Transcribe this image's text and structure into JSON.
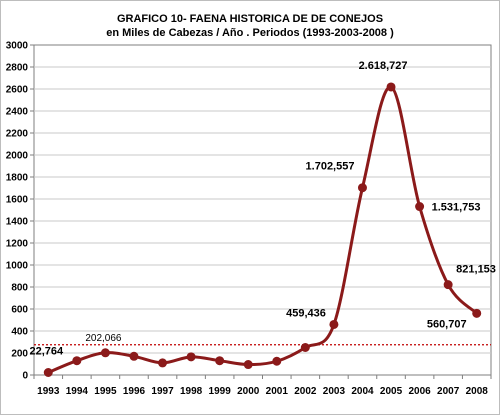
{
  "chart_data": {
    "type": "line",
    "title": "GRAFICO 10- FAENA HISTORICA DE DE CONEJOS",
    "subtitle": "en  Miles de Cabezas / Año . Periodos (1993-2003-2008 )",
    "xlabel": "",
    "ylabel": "",
    "ylim": [
      0,
      3000
    ],
    "yticks": [
      "0",
      "200",
      "400",
      "600",
      "800",
      "1000",
      "1200",
      "1400",
      "1600",
      "1800",
      "2000",
      "2200",
      "2400",
      "2600",
      "2800",
      "3000"
    ],
    "categories": [
      "1993",
      "1994",
      "1995",
      "1996",
      "1997",
      "1998",
      "1999",
      "2000",
      "2001",
      "2002",
      "2003",
      "2004",
      "2005",
      "2006",
      "2007",
      "2008"
    ],
    "values": [
      22.764,
      130,
      202.066,
      170,
      110,
      165,
      130,
      95,
      125,
      250,
      459.436,
      1702.557,
      2618.727,
      1531.753,
      821.153,
      560.707
    ],
    "series_color": "#8b1a1a",
    "smooth": true,
    "grid": "horizontal",
    "reference_line": {
      "value": 275,
      "style": "dotted",
      "color": "#c00000"
    },
    "data_labels": [
      {
        "index": 0,
        "text": "22,764"
      },
      {
        "index": 2,
        "text": "202,066"
      },
      {
        "index": 10,
        "text": "459,436"
      },
      {
        "index": 11,
        "text": "1.702,557"
      },
      {
        "index": 12,
        "text": "2.618,727"
      },
      {
        "index": 13,
        "text": "1.531,753"
      },
      {
        "index": 14,
        "text": "821,153"
      },
      {
        "index": 15,
        "text": "560,707"
      }
    ]
  }
}
